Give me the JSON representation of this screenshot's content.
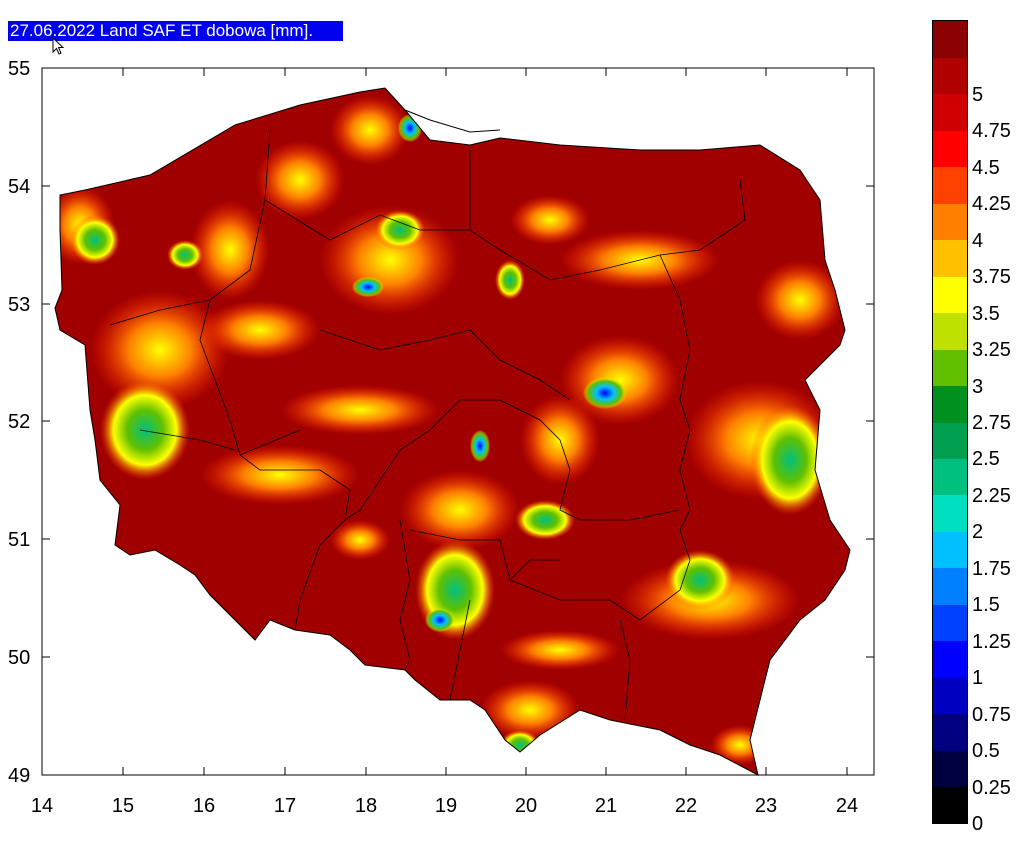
{
  "title": "27.06.2022 Land SAF ET dobowa [mm].",
  "map": {
    "x_axis": {
      "min": 14,
      "max": 24,
      "ticks": [
        "14",
        "15",
        "16",
        "17",
        "18",
        "19",
        "20",
        "21",
        "22",
        "23",
        "24"
      ]
    },
    "y_axis": {
      "min": 49,
      "max": 55,
      "ticks": [
        "49",
        "50",
        "51",
        "52",
        "53",
        "54",
        "55"
      ]
    }
  },
  "legend": {
    "labels": [
      "0",
      "0.25",
      "0.5",
      "0.75",
      "1",
      "1.25",
      "1.5",
      "1.75",
      "2",
      "2.25",
      "2.5",
      "2.75",
      "3",
      "3.25",
      "3.5",
      "3.75",
      "4",
      "4.25",
      "4.5",
      "4.75",
      "5"
    ],
    "colors": [
      "#000000",
      "#000040",
      "#000080",
      "#0000c0",
      "#0000ff",
      "#0040ff",
      "#0080ff",
      "#00c0ff",
      "#00e0c0",
      "#00c080",
      "#00a050",
      "#009020",
      "#60c000",
      "#c0e000",
      "#ffff00",
      "#ffc000",
      "#ff8000",
      "#ff4000",
      "#ff0000",
      "#d00000",
      "#b00000",
      "#8b0000"
    ]
  }
}
